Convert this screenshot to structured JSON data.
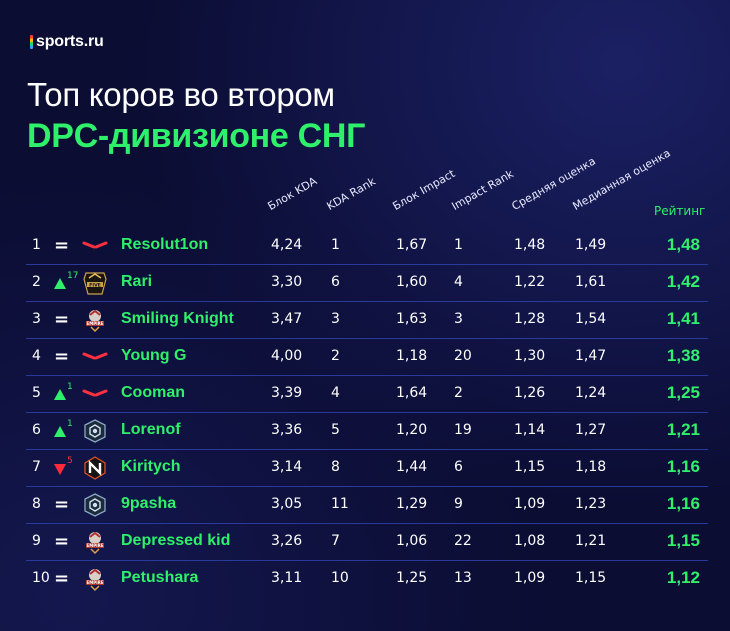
{
  "brand": {
    "logo_text": "sports.ru"
  },
  "title": {
    "line1": "Топ коров во втором",
    "line2": "DPC-дивизионе СНГ"
  },
  "columns": {
    "kda_block": "Блок KDA",
    "kda_rank": "KDA Rank",
    "impact_block": "Блок Impact",
    "impact_rank": "Impact Rank",
    "avg_score": "Средняя оценка",
    "median_score": "Медианная оценка",
    "rating": "Рейтинг"
  },
  "colors": {
    "accent_green": "#2ff06a",
    "up": "#2ff06a",
    "down": "#ff2b3d",
    "separator": "#2a3a9a",
    "background": "#0b0d33"
  },
  "chart_data": {
    "type": "table",
    "rows": [
      {
        "rank": "1",
        "change": "=",
        "delta": "",
        "team_icon": "virtus-pro-logo-icon",
        "player": "Resolut1on",
        "kda_block": "4,24",
        "kda_rank": "1",
        "impact_block": "1,67",
        "impact_rank": "1",
        "avg_score": "1,48",
        "median_score": "1,49",
        "rating": "1,48"
      },
      {
        "rank": "2",
        "change": "up",
        "delta": "17",
        "team_icon": "five-logo-icon",
        "player": "Rari",
        "kda_block": "3,30",
        "kda_rank": "6",
        "impact_block": "1,60",
        "impact_rank": "4",
        "avg_score": "1,22",
        "median_score": "1,61",
        "rating": "1,42"
      },
      {
        "rank": "3",
        "change": "=",
        "delta": "",
        "team_icon": "empire-logo-icon",
        "player": "Smiling Knight",
        "kda_block": "3,47",
        "kda_rank": "3",
        "impact_block": "1,63",
        "impact_rank": "3",
        "avg_score": "1,28",
        "median_score": "1,54",
        "rating": "1,41"
      },
      {
        "rank": "4",
        "change": "=",
        "delta": "",
        "team_icon": "virtus-pro-logo-icon",
        "player": "Young G",
        "kda_block": "4,00",
        "kda_rank": "2",
        "impact_block": "1,18",
        "impact_rank": "20",
        "avg_score": "1,30",
        "median_score": "1,47",
        "rating": "1,38"
      },
      {
        "rank": "5",
        "change": "up",
        "delta": "1",
        "team_icon": "virtus-pro-logo-icon",
        "player": "Cooman",
        "kda_block": "3,39",
        "kda_rank": "4",
        "impact_block": "1,64",
        "impact_rank": "2",
        "avg_score": "1,26",
        "median_score": "1,24",
        "rating": "1,25"
      },
      {
        "rank": "6",
        "change": "up",
        "delta": "1",
        "team_icon": "hellraisers-logo-icon",
        "player": "Lorenof",
        "kda_block": "3,36",
        "kda_rank": "5",
        "impact_block": "1,20",
        "impact_rank": "19",
        "avg_score": "1,14",
        "median_score": "1,27",
        "rating": "1,21"
      },
      {
        "rank": "7",
        "change": "down",
        "delta": "5",
        "team_icon": "nemiga-logo-icon",
        "player": "Kiritych",
        "kda_block": "3,14",
        "kda_rank": "8",
        "impact_block": "1,44",
        "impact_rank": "6",
        "avg_score": "1,15",
        "median_score": "1,18",
        "rating": "1,16"
      },
      {
        "rank": "8",
        "change": "=",
        "delta": "",
        "team_icon": "hellraisers-logo-icon",
        "player": "9pasha",
        "kda_block": "3,05",
        "kda_rank": "11",
        "impact_block": "1,29",
        "impact_rank": "9",
        "avg_score": "1,09",
        "median_score": "1,23",
        "rating": "1,16"
      },
      {
        "rank": "9",
        "change": "=",
        "delta": "",
        "team_icon": "empire-logo-icon",
        "player": "Depressed kid",
        "kda_block": "3,26",
        "kda_rank": "7",
        "impact_block": "1,06",
        "impact_rank": "22",
        "avg_score": "1,08",
        "median_score": "1,21",
        "rating": "1,15"
      },
      {
        "rank": "10",
        "change": "=",
        "delta": "",
        "team_icon": "empire-logo-icon",
        "player": "Petushara",
        "kda_block": "3,11",
        "kda_rank": "10",
        "impact_block": "1,25",
        "impact_rank": "13",
        "avg_score": "1,09",
        "median_score": "1,15",
        "rating": "1,12"
      }
    ]
  }
}
